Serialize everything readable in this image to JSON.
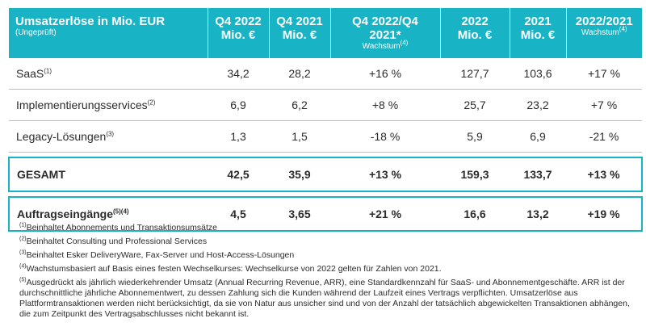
{
  "header": {
    "col0_title": "Umsatzerlöse in Mio. EUR",
    "col0_note": "(Ungeprüft)",
    "col1_line1": "Q4 2022",
    "col1_line2": "Mio. €",
    "col2_line1": "Q4 2021",
    "col2_line2": "Mio. €",
    "col3_line1": "Q4 2022/Q4",
    "col3_line2": "2021*",
    "col3_note": "Wachstum",
    "col3_note_sup": "(4)",
    "col4_line1": "2022",
    "col4_line2": "Mio. €",
    "col5_line1": "2021",
    "col5_line2": "Mio. €",
    "col6_line1": "2022/2021",
    "col6_note": "Wachstum",
    "col6_note_sup": "(4)"
  },
  "rows": [
    {
      "label": "SaaS",
      "sup": "(1)",
      "q4_2022": "34,2",
      "q4_2021": "28,2",
      "q4_growth": "+16 %",
      "y2022": "127,7",
      "y2021": "103,6",
      "y_growth": "+17 %"
    },
    {
      "label": "Implementierungsservices",
      "sup": "(2)",
      "q4_2022": "6,9",
      "q4_2021": "6,2",
      "q4_growth": "+8 %",
      "y2022": "25,7",
      "y2021": "23,2",
      "y_growth": "+7 %"
    },
    {
      "label": "Legacy-Lösungen",
      "sup": "(3)",
      "q4_2022": "1,3",
      "q4_2021": "1,5",
      "q4_growth": "-18 %",
      "y2022": "5,9",
      "y2021": "6,9",
      "y_growth": "-21 %"
    }
  ],
  "total": {
    "label": "GESAMT",
    "q4_2022": "42,5",
    "q4_2021": "35,9",
    "q4_growth": "+13 %",
    "y2022": "159,3",
    "y2021": "133,7",
    "y_growth": "+13 %"
  },
  "orders": {
    "label": "Auftragseingänge",
    "sup": "(5)(4)",
    "q4_2022": "4,5",
    "q4_2021": "3,65",
    "q4_growth": "+21 %",
    "y2022": "16,6",
    "y2021": "13,2",
    "y_growth": "+19 %"
  },
  "footnotes": [
    {
      "mark": "(1)",
      "text": "Beinhaltet Abonnements und Transaktionsumsätze"
    },
    {
      "mark": "(2)",
      "text": "Beinhaltet Consulting und Professional Services"
    },
    {
      "mark": "(3)",
      "text": "Beinhaltet Esker DeliveryWare, Fax-Server und Host-Access-Lösungen"
    },
    {
      "mark": "(4)",
      "text": "Wachstumsbasiert auf Basis eines festen Wechselkurses: Wechselkurse von 2022 gelten für Zahlen von 2021."
    },
    {
      "mark": "(5)",
      "text": "Ausgedrückt als jährlich wiederkehrender Umsatz (Annual Recurring Revenue, ARR), eine Standardkennzahl für SaaS- und Abonnementgeschäfte. ARR ist der durchschnittliche jährliche Abonnementwert, zu dessen Zahlung sich die Kunden während der Laufzeit eines Vertrags verpflichten. Umsatzerlöse aus Plattformtransaktionen werden nicht berücksichtigt, da sie von Natur aus unsicher sind und von der Anzahl der tatsächlich abgewickelten Transaktionen abhängen, die zum Zeitpunkt des Vertragsabschlusses nicht bekannt ist."
    }
  ],
  "colors": {
    "accent": "#18b4c6",
    "header_text": "#ffffff",
    "row_divider": "#bcbcbc"
  }
}
